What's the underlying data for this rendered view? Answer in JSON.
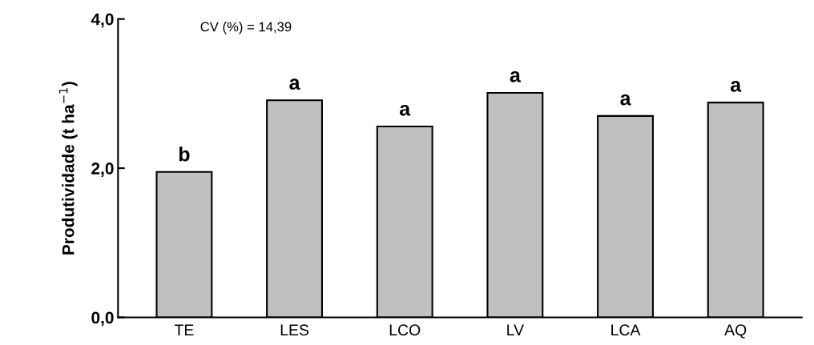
{
  "chart_data": {
    "type": "bar",
    "ylabel": "Produtividade (t ha$^{−1}$)",
    "categories": [
      "TE",
      "LES",
      "LCO",
      "LV",
      "LCA",
      "AQ"
    ],
    "values": [
      1.95,
      2.91,
      2.56,
      3.01,
      2.7,
      2.88
    ],
    "color": "#c0c0c0",
    "ylim": [
      0,
      4
    ],
    "yticks": [
      {
        "value": 0,
        "label": "0,0"
      },
      {
        "value": 2,
        "label": "2,0"
      },
      {
        "value": 4,
        "label": "4,0"
      }
    ],
    "grid": false,
    "annotations": [
      "CV (%) = 14,39",
      {
        "text": "b",
        "x": "TE",
        "y": 1.95
      },
      {
        "text": "a",
        "x": "LES",
        "y": 2.91
      },
      {
        "text": "a",
        "x": "LCO",
        "y": 2.56
      },
      {
        "text": "a",
        "x": "LV",
        "y": 3.01
      },
      {
        "text": "a",
        "x": "LCA",
        "y": 2.7
      },
      {
        "text": "a",
        "x": "AQ",
        "y": 2.88
      }
    ]
  }
}
